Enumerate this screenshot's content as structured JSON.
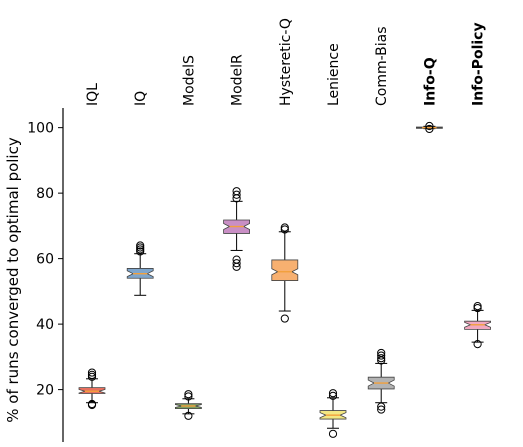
{
  "chart_data": {
    "type": "box",
    "title": "",
    "xlabel": "",
    "ylabel": "% of runs converged to optimal policy",
    "ylim": [
      4,
      106
    ],
    "yticks": [
      20,
      40,
      60,
      80,
      100
    ],
    "ytick_labels": [
      "20",
      "40",
      "60",
      "80",
      "100"
    ],
    "x_tick_position": "top",
    "x_tick_rotation": 90,
    "grid": false,
    "categories": [
      "IQL",
      "IQ",
      "ModelS",
      "ModelR",
      "Hysteretic-Q",
      "Lenience",
      "Comm-Bias",
      "Info-Q",
      "Info-Policy"
    ],
    "bold_categories": [
      "Info-Q",
      "Info-Policy"
    ],
    "series": [
      {
        "label": "IQL",
        "whisker_low": 16,
        "q1": 18.8,
        "median": 19.5,
        "q3": 20.6,
        "whisker_high": 23.3,
        "fliers": [
          15.3,
          15.6,
          23.9,
          24.5,
          25.2
        ],
        "color": "#e8705f"
      },
      {
        "label": "IQ",
        "whisker_low": 48.8,
        "q1": 54,
        "median": 55.4,
        "q3": 57,
        "whisker_high": 61.5,
        "fliers": [
          62.2,
          62.8,
          63.4,
          64
        ],
        "color": "#7fa6cc"
      },
      {
        "label": "ModelS",
        "whisker_low": 12.6,
        "q1": 14.2,
        "median": 15,
        "q3": 15.7,
        "whisker_high": 17.2,
        "fliers": [
          12,
          17.9,
          18.6
        ],
        "color": "#7f9e62"
      },
      {
        "label": "ModelR",
        "whisker_low": 62.5,
        "q1": 67.7,
        "median": 69.8,
        "q3": 71.8,
        "whisker_high": 77.5,
        "fliers": [
          57.5,
          58.6,
          59.7,
          78.4,
          79.5,
          80.6
        ],
        "color": "#c98fc5"
      },
      {
        "label": "Hysteretic-Q",
        "whisker_low": 44,
        "q1": 53.3,
        "median": 56,
        "q3": 59.6,
        "whisker_high": 68.2,
        "fliers": [
          41.7,
          68.9,
          69.5
        ],
        "color": "#f7b070"
      },
      {
        "label": "Lenience",
        "whisker_low": 8.2,
        "q1": 11,
        "median": 12.2,
        "q3": 13.6,
        "whisker_high": 17.5,
        "fliers": [
          6.5,
          18.1,
          18.9
        ],
        "color": "#f2e783"
      },
      {
        "label": "Comm-Bias",
        "whisker_low": 16,
        "q1": 20.2,
        "median": 22,
        "q3": 23.8,
        "whisker_high": 28,
        "fliers": [
          13.9,
          14.8,
          28.9,
          29.6,
          30.4,
          31.2
        ],
        "color": "#b3b3b3"
      },
      {
        "label": "Info-Q",
        "whisker_low": 99.7,
        "q1": 99.8,
        "median": 100,
        "q3": 100.2,
        "whisker_high": 100.4,
        "fliers": [
          99.6,
          100.5
        ],
        "color": "#e07b39"
      },
      {
        "label": "Info-Policy",
        "whisker_low": 34.5,
        "q1": 38.4,
        "median": 39.8,
        "q3": 40.9,
        "whisker_high": 44.2,
        "fliers": [
          33.9,
          44.9,
          45.5
        ],
        "color": "#f2a8bf"
      }
    ]
  }
}
